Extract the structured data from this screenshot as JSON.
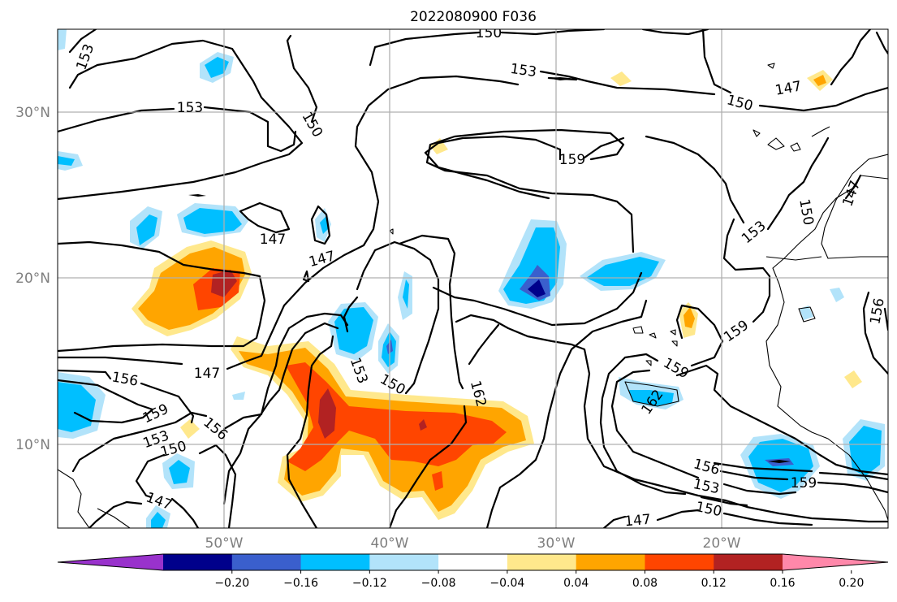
{
  "title": "2022080900 F036",
  "axes": {
    "lon_labels": [
      "50°W",
      "40°W",
      "30°W",
      "20°W"
    ],
    "lat_labels": [
      "30°N",
      "20°N",
      "10°N"
    ]
  },
  "colorbar": {
    "ticks": [
      "−0.20",
      "−0.16",
      "−0.12",
      "−0.08",
      "−0.04",
      "0.04",
      "0.08",
      "0.12",
      "0.16",
      "0.20"
    ],
    "colors": [
      "#9932CC",
      "#00008B",
      "#3A5FCD",
      "#00BFFF",
      "#B2E3FA",
      "#FFFFFF",
      "#FFE88C",
      "#FFA500",
      "#FF4500",
      "#B22222",
      "#FF88AA"
    ],
    "extend": "both"
  },
  "contour_labels": [
    "150",
    "153",
    "153",
    "150",
    "147",
    "153",
    "150",
    "159",
    "147",
    "147",
    "153",
    "150",
    "147",
    "147",
    "153",
    "150",
    "156",
    "159",
    "153",
    "150",
    "156",
    "147",
    "162",
    "159",
    "162",
    "159",
    "156",
    "153",
    "150",
    "147",
    "159",
    "156"
  ]
}
